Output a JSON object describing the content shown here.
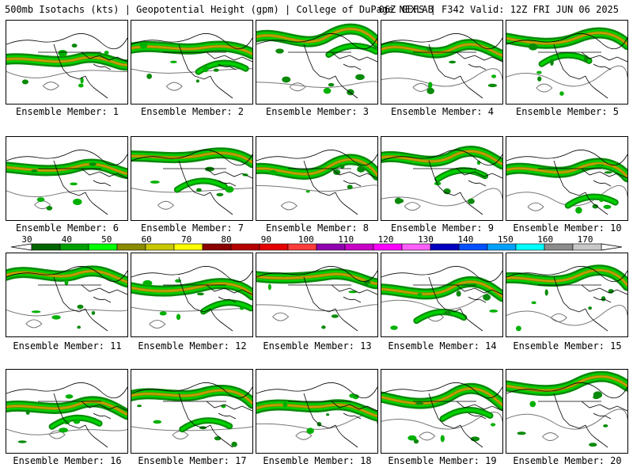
{
  "header": {
    "left": "500mb Isotachs (kts) | Geopotential Height (gpm) | College of DuPage NEXLAB",
    "right": "06Z GEFS | F342 Valid: 12Z FRI JUN 06 2025"
  },
  "members": [
    {
      "label": "Ensemble Member: 1"
    },
    {
      "label": "Ensemble Member: 2"
    },
    {
      "label": "Ensemble Member: 3"
    },
    {
      "label": "Ensemble Member: 4"
    },
    {
      "label": "Ensemble Member: 5"
    },
    {
      "label": "Ensemble Member: 6"
    },
    {
      "label": "Ensemble Member: 7"
    },
    {
      "label": "Ensemble Member: 8"
    },
    {
      "label": "Ensemble Member: 9"
    },
    {
      "label": "Ensemble Member: 10"
    },
    {
      "label": "Ensemble Member: 11"
    },
    {
      "label": "Ensemble Member: 12"
    },
    {
      "label": "Ensemble Member: 13"
    },
    {
      "label": "Ensemble Member: 14"
    },
    {
      "label": "Ensemble Member: 15"
    },
    {
      "label": "Ensemble Member: 16"
    },
    {
      "label": "Ensemble Member: 17"
    },
    {
      "label": "Ensemble Member: 18"
    },
    {
      "label": "Ensemble Member: 19"
    },
    {
      "label": "Ensemble Member: 20"
    }
  ],
  "colorbar": {
    "ticks": [
      "30",
      "40",
      "50",
      "60",
      "70",
      "80",
      "90",
      "100",
      "110",
      "120",
      "130",
      "140",
      "150",
      "160",
      "170"
    ],
    "colors": [
      "#006400",
      "#00a000",
      "#00ff00",
      "#8b8b00",
      "#c8c800",
      "#ffff00",
      "#8b0000",
      "#b40000",
      "#e60000",
      "#ff3c3c",
      "#9000b0",
      "#c800c8",
      "#ff00ff",
      "#ff60ff",
      "#0000c0",
      "#0050ff",
      "#00a0ff",
      "#00ffff",
      "#8c8c8c",
      "#c8c8c8"
    ]
  }
}
